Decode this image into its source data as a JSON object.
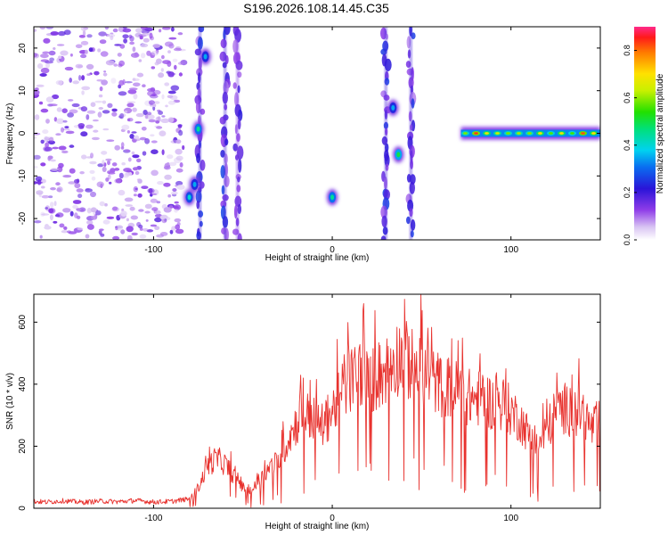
{
  "title": "S196.2026.108.14.45.C35",
  "colors": {
    "line": "#e8322e",
    "spec_base": "#7a2be2"
  },
  "chart_data": [
    {
      "type": "heatmap",
      "xlabel": "Height of straight line (km)",
      "ylabel": "Frequency (Hz)",
      "colorbar_label": "Normalized spectral amplitude",
      "xlim": [
        -167,
        150
      ],
      "ylim": [
        -25,
        25
      ],
      "xticks": [
        -100,
        0,
        100
      ],
      "yticks": [
        -20,
        -10,
        0,
        10,
        20
      ],
      "colorbar_ticks": [
        0.0,
        0.2,
        0.4,
        0.6,
        0.8
      ],
      "colorbar_range": [
        0.0,
        0.9
      ],
      "features": [
        {
          "kind": "noise-field",
          "x": [
            -167,
            -83
          ],
          "f": [
            -25,
            25
          ],
          "amplitude": 0.15
        },
        {
          "kind": "vertical-streak",
          "x": -74,
          "f": [
            -25,
            25
          ],
          "amplitude": 0.2
        },
        {
          "kind": "vertical-streak",
          "x": -60,
          "f": [
            -25,
            25
          ],
          "amplitude": 0.2
        },
        {
          "kind": "vertical-streak",
          "x": -53,
          "f": [
            -25,
            25
          ],
          "amplitude": 0.15
        },
        {
          "kind": "vertical-streak",
          "x": 30,
          "f": [
            -25,
            25
          ],
          "amplitude": 0.2
        },
        {
          "kind": "vertical-streak",
          "x": 44,
          "f": [
            -25,
            25
          ],
          "amplitude": 0.2
        },
        {
          "kind": "blob",
          "x": -80,
          "f": -15,
          "amplitude": 0.4
        },
        {
          "kind": "blob",
          "x": -77,
          "f": -12,
          "amplitude": 0.35
        },
        {
          "kind": "blob",
          "x": -75,
          "f": 1,
          "amplitude": 0.45
        },
        {
          "kind": "blob",
          "x": -71,
          "f": 18,
          "amplitude": 0.35
        },
        {
          "kind": "blob",
          "x": 0,
          "f": -15,
          "amplitude": 0.45
        },
        {
          "kind": "blob",
          "x": 37,
          "f": -5,
          "amplitude": 0.5
        },
        {
          "kind": "blob",
          "x": 34,
          "f": 6,
          "amplitude": 0.35
        },
        {
          "kind": "tone-band",
          "x": [
            72,
            150
          ],
          "f": 0,
          "amplitude": 0.9
        }
      ]
    },
    {
      "type": "line",
      "xlabel": "Height of straight line (km)",
      "ylabel": "SNR (10 * v/v)",
      "xlim": [
        -167,
        150
      ],
      "ylim": [
        0,
        690
      ],
      "xticks": [
        -100,
        0,
        100
      ],
      "yticks": [
        0,
        200,
        400,
        600
      ],
      "x": [
        -167,
        -160,
        -150,
        -140,
        -130,
        -120,
        -110,
        -100,
        -90,
        -80,
        -75,
        -70,
        -65,
        -60,
        -55,
        -50,
        -45,
        -40,
        -35,
        -30,
        -25,
        -20,
        -15,
        -10,
        -5,
        0,
        5,
        10,
        15,
        20,
        25,
        30,
        35,
        40,
        45,
        50,
        55,
        60,
        65,
        70,
        75,
        80,
        85,
        90,
        95,
        100,
        105,
        110,
        115,
        120,
        125,
        130,
        135,
        140,
        145,
        150
      ],
      "values": [
        22,
        20,
        24,
        19,
        23,
        21,
        25,
        20,
        22,
        30,
        70,
        140,
        170,
        150,
        110,
        70,
        60,
        100,
        140,
        160,
        230,
        290,
        320,
        300,
        280,
        330,
        390,
        430,
        470,
        430,
        440,
        470,
        510,
        520,
        470,
        480,
        440,
        420,
        410,
        400,
        380,
        370,
        380,
        350,
        360,
        330,
        300,
        250,
        210,
        260,
        330,
        340,
        320,
        330,
        270,
        300
      ]
    }
  ]
}
